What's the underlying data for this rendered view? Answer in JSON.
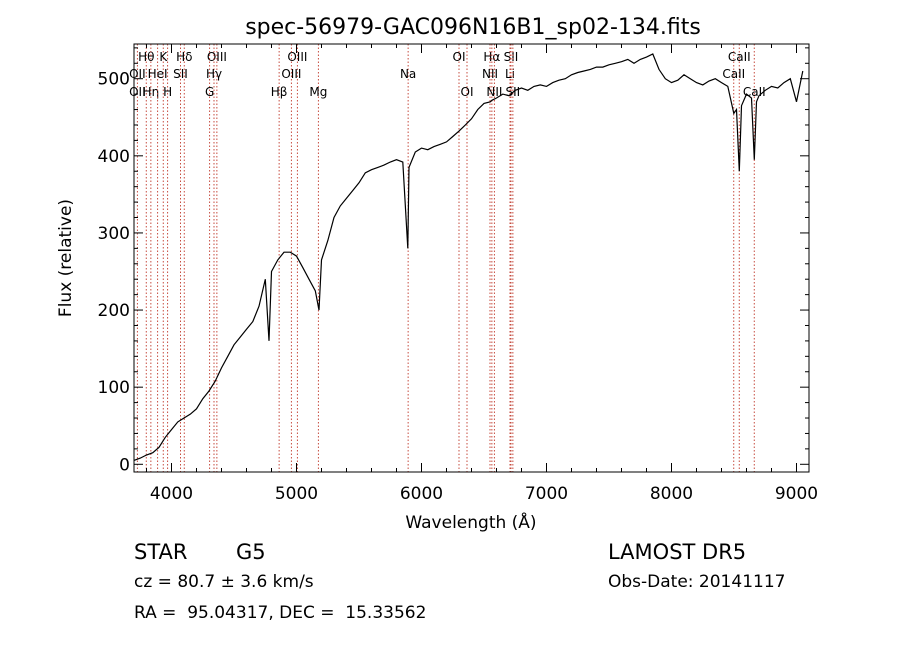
{
  "chart_data": {
    "type": "line",
    "title": "spec-56979-GAC096N16B1_sp02-134.fits",
    "xlabel": "Wavelength (Å)",
    "ylabel": "Flux (relative)",
    "xlim": [
      3700,
      9100
    ],
    "ylim": [
      -10,
      545
    ],
    "x_ticks": [
      4000,
      5000,
      6000,
      7000,
      8000,
      9000
    ],
    "y_ticks": [
      0,
      100,
      200,
      300,
      400,
      500
    ],
    "grid": false,
    "series": [
      {
        "x": [
          3700,
          3750,
          3800,
          3850,
          3900,
          3950,
          4000,
          4050,
          4100,
          4150,
          4200,
          4250,
          4300,
          4350,
          4400,
          4450,
          4500,
          4550,
          4600,
          4650,
          4700,
          4750,
          4780,
          4800,
          4850,
          4900,
          4950,
          5000,
          5050,
          5100,
          5150,
          5180,
          5200,
          5250,
          5300,
          5350,
          5400,
          5450,
          5500,
          5550,
          5600,
          5650,
          5700,
          5750,
          5800,
          5850,
          5890,
          5900,
          5950,
          6000,
          6050,
          6100,
          6150,
          6200,
          6250,
          6300,
          6350,
          6400,
          6450,
          6500,
          6550,
          6563,
          6600,
          6650,
          6700,
          6750,
          6800,
          6850,
          6900,
          6950,
          7000,
          7050,
          7100,
          7150,
          7200,
          7250,
          7300,
          7350,
          7400,
          7450,
          7500,
          7550,
          7600,
          7650,
          7700,
          7750,
          7800,
          7850,
          7900,
          7950,
          8000,
          8050,
          8100,
          8150,
          8200,
          8250,
          8300,
          8350,
          8400,
          8450,
          8498,
          8520,
          8542,
          8560,
          8600,
          8640,
          8662,
          8680,
          8700,
          8750,
          8800,
          8850,
          8900,
          8950,
          9000,
          9050
        ],
        "y": [
          5,
          8,
          12,
          15,
          22,
          35,
          45,
          55,
          60,
          65,
          72,
          85,
          95,
          108,
          125,
          140,
          155,
          165,
          175,
          185,
          205,
          240,
          160,
          250,
          265,
          275,
          275,
          270,
          255,
          240,
          225,
          200,
          265,
          290,
          320,
          335,
          345,
          355,
          365,
          378,
          382,
          385,
          388,
          392,
          395,
          392,
          280,
          385,
          405,
          410,
          408,
          412,
          415,
          418,
          425,
          432,
          440,
          448,
          460,
          468,
          470,
          472,
          475,
          480,
          478,
          485,
          488,
          485,
          490,
          492,
          490,
          495,
          498,
          500,
          505,
          508,
          510,
          512,
          515,
          515,
          518,
          520,
          522,
          525,
          520,
          525,
          528,
          532,
          512,
          500,
          495,
          498,
          505,
          500,
          495,
          492,
          497,
          500,
          495,
          490,
          455,
          460,
          380,
          465,
          480,
          475,
          395,
          470,
          478,
          485,
          490,
          488,
          495,
          500,
          470,
          510
        ]
      }
    ],
    "line_markers": [
      {
        "label": "Hθ",
        "x": 3798,
        "row": 0
      },
      {
        "label": "OII",
        "x": 3727,
        "row": 1
      },
      {
        "label": "OII",
        "x": 3727,
        "row": 2
      },
      {
        "label": "K",
        "x": 3934,
        "row": 0
      },
      {
        "label": "Hδ",
        "x": 4102,
        "row": 0
      },
      {
        "label": "Hη",
        "x": 3835,
        "row": 2
      },
      {
        "label": "HeI",
        "x": 3889,
        "row": 1
      },
      {
        "label": "H",
        "x": 3969,
        "row": 2
      },
      {
        "label": "SII",
        "x": 4072,
        "row": 1
      },
      {
        "label": "OIII",
        "x": 4363,
        "row": 0
      },
      {
        "label": "Hγ",
        "x": 4340,
        "row": 1
      },
      {
        "label": "G",
        "x": 4305,
        "row": 2
      },
      {
        "label": "Hβ",
        "x": 4861,
        "row": 2
      },
      {
        "label": "OIII",
        "x": 5007,
        "row": 0
      },
      {
        "label": "OIII",
        "x": 4959,
        "row": 1
      },
      {
        "label": "Mg",
        "x": 5175,
        "row": 2
      },
      {
        "label": "Na",
        "x": 5893,
        "row": 1
      },
      {
        "label": "OI",
        "x": 6300,
        "row": 0
      },
      {
        "label": "OI",
        "x": 6364,
        "row": 2
      },
      {
        "label": "Hα",
        "x": 6563,
        "row": 0
      },
      {
        "label": "SII",
        "x": 6716,
        "row": 0
      },
      {
        "label": "NII",
        "x": 6548,
        "row": 1
      },
      {
        "label": "Li",
        "x": 6708,
        "row": 1
      },
      {
        "label": "NII",
        "x": 6583,
        "row": 2
      },
      {
        "label": "SII",
        "x": 6731,
        "row": 2
      },
      {
        "label": "CaII",
        "x": 8542,
        "row": 0
      },
      {
        "label": "CaII",
        "x": 8498,
        "row": 1
      },
      {
        "label": "CaII",
        "x": 8662,
        "row": 2
      }
    ]
  },
  "info": {
    "object_class": "STAR",
    "subclass": "G5",
    "survey": "LAMOST DR5",
    "cz": "cz = 80.7 ± 3.6 km/s",
    "obs_date": "Obs-Date: 20141117",
    "coords": "RA =  95.04317, DEC =  15.33562"
  },
  "colors": {
    "spectrum": "#000000",
    "marker_lines": "#c0392b",
    "axes": "#000000"
  }
}
